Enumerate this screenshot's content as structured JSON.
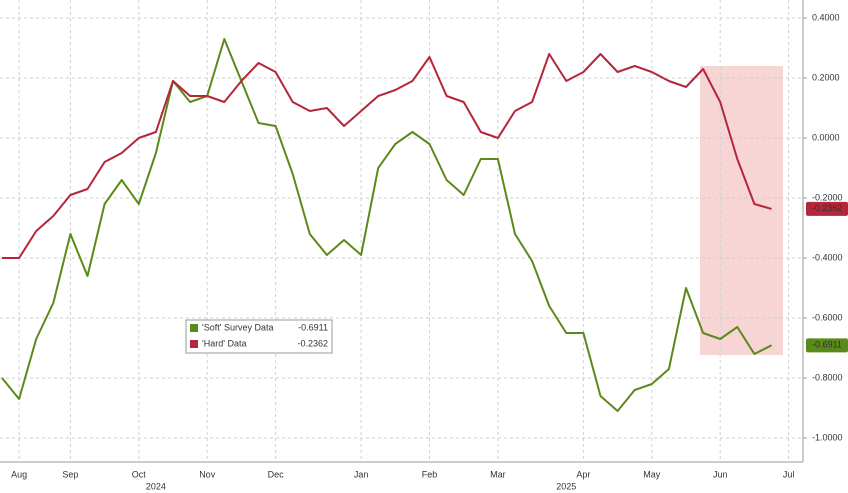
{
  "chart_data": {
    "type": "line",
    "categories": [
      null,
      "Aug",
      null,
      null,
      "Sep",
      null,
      null,
      null,
      "Oct",
      null,
      null,
      null,
      "Nov",
      null,
      null,
      null,
      "Dec",
      null,
      null,
      null,
      null,
      "Jan",
      null,
      null,
      null,
      "Feb",
      null,
      null,
      null,
      "Mar",
      null,
      null,
      null,
      null,
      "Apr",
      null,
      null,
      null,
      "May",
      null,
      null,
      null,
      "Jun",
      null,
      null,
      null,
      "Jul"
    ],
    "category_years": [
      null,
      null,
      null,
      null,
      null,
      null,
      null,
      null,
      null,
      "2024",
      null,
      null,
      null,
      null,
      null,
      null,
      null,
      null,
      null,
      null,
      null,
      null,
      null,
      null,
      null,
      null,
      null,
      null,
      null,
      null,
      null,
      null,
      null,
      "2025",
      null,
      null,
      null,
      null,
      null,
      null,
      null,
      null,
      null,
      null,
      null,
      null,
      null
    ],
    "series": [
      {
        "name": "'Soft' Survey Data",
        "color": "#5a8a1a",
        "last_value": -0.6911,
        "values": [
          -0.8,
          -0.87,
          -0.67,
          -0.55,
          -0.32,
          -0.46,
          -0.22,
          -0.14,
          -0.22,
          -0.05,
          0.19,
          0.12,
          0.14,
          0.33,
          0.19,
          0.05,
          0.04,
          -0.12,
          -0.32,
          -0.39,
          -0.34,
          -0.39,
          -0.1,
          -0.02,
          0.02,
          -0.02,
          -0.14,
          -0.19,
          -0.07,
          -0.07,
          -0.32,
          -0.41,
          -0.56,
          -0.65,
          -0.65,
          -0.86,
          -0.91,
          -0.84,
          -0.82,
          -0.77,
          -0.5,
          -0.65,
          -0.67,
          -0.63,
          -0.72,
          -0.6911,
          null
        ]
      },
      {
        "name": "'Hard' Data",
        "color": "#b5263a",
        "last_value": -0.2362,
        "values": [
          -0.4,
          -0.4,
          -0.31,
          -0.26,
          -0.19,
          -0.17,
          -0.08,
          -0.05,
          0.0,
          0.02,
          0.19,
          0.14,
          0.14,
          0.12,
          0.19,
          0.25,
          0.22,
          0.12,
          0.09,
          0.1,
          0.04,
          0.09,
          0.14,
          0.16,
          0.19,
          0.27,
          0.14,
          0.12,
          0.02,
          0.0,
          0.09,
          0.12,
          0.28,
          0.19,
          0.22,
          0.28,
          0.22,
          0.24,
          0.22,
          0.19,
          0.17,
          0.23,
          0.12,
          -0.07,
          -0.22,
          -0.2362,
          null
        ]
      }
    ],
    "ylim": [
      -1.08,
      0.46
    ],
    "yticks": [
      {
        "value": 0.4,
        "label": "0.4000"
      },
      {
        "value": 0.2,
        "label": "0.2000"
      },
      {
        "value": 0,
        "label": "0.0000"
      },
      {
        "value": -0.2,
        "label": "-0.2000"
      },
      {
        "value": -0.4,
        "label": "-0.4000"
      },
      {
        "value": -0.6,
        "label": "-0.6000"
      },
      {
        "value": -0.8,
        "label": "-0.8000"
      },
      {
        "value": -1,
        "label": "-1.0000"
      }
    ],
    "grid": true
  }
}
